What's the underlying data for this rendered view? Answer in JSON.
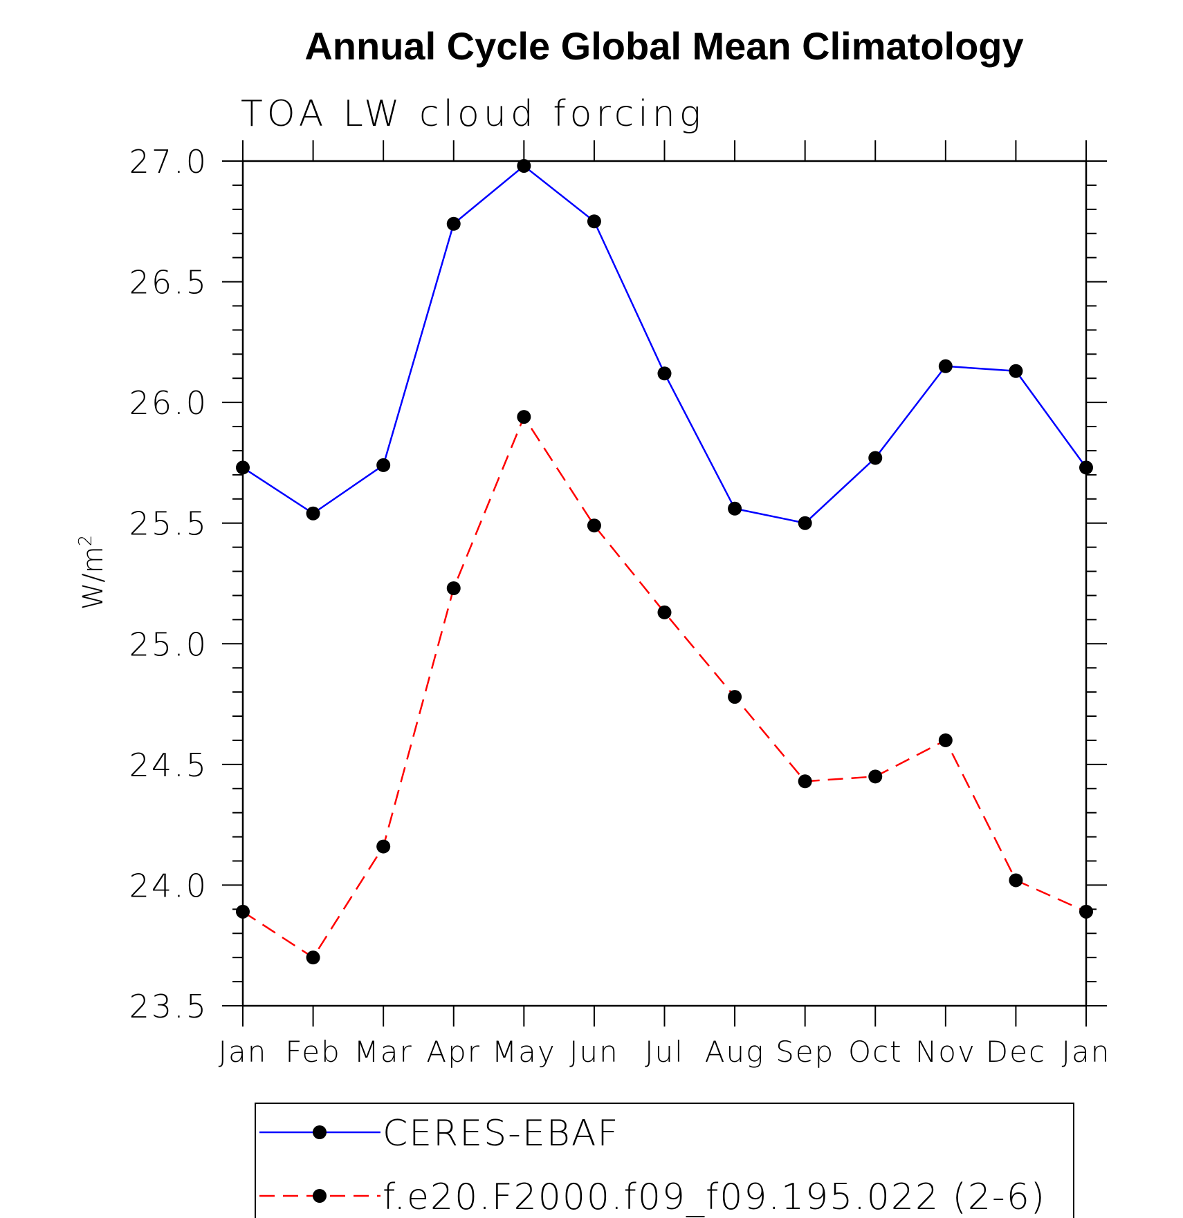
{
  "chart_data": {
    "type": "line",
    "title": "Annual Cycle Global Mean Climatology",
    "subtitle": "TOA LW cloud forcing",
    "ylabel_base": "W/m",
    "ylabel_sup": "2",
    "xlabel": "",
    "categories": [
      "Jan",
      "Feb",
      "Mar",
      "Apr",
      "May",
      "Jun",
      "Jul",
      "Aug",
      "Sep",
      "Oct",
      "Nov",
      "Dec",
      "Jan"
    ],
    "ylim": [
      23.5,
      27.0
    ],
    "yticks": [
      "23.5",
      "24.0",
      "24.5",
      "25.0",
      "25.5",
      "26.0",
      "26.5",
      "27.0"
    ],
    "grid": false,
    "legend_position": "bottom",
    "series": [
      {
        "name": "CERES-EBAF",
        "color": "#0000ff",
        "dash": "solid",
        "values": [
          25.73,
          25.54,
          25.74,
          26.74,
          26.98,
          26.75,
          26.12,
          25.56,
          25.5,
          25.77,
          26.15,
          26.13,
          25.73
        ]
      },
      {
        "name": "f.e20.F2000.f09_f09.195.022 (2-6)",
        "color": "#ff0000",
        "dash": "dashed",
        "values": [
          23.89,
          23.7,
          24.16,
          25.23,
          25.94,
          25.49,
          25.13,
          24.78,
          24.43,
          24.45,
          24.6,
          24.02,
          23.89
        ]
      }
    ]
  }
}
